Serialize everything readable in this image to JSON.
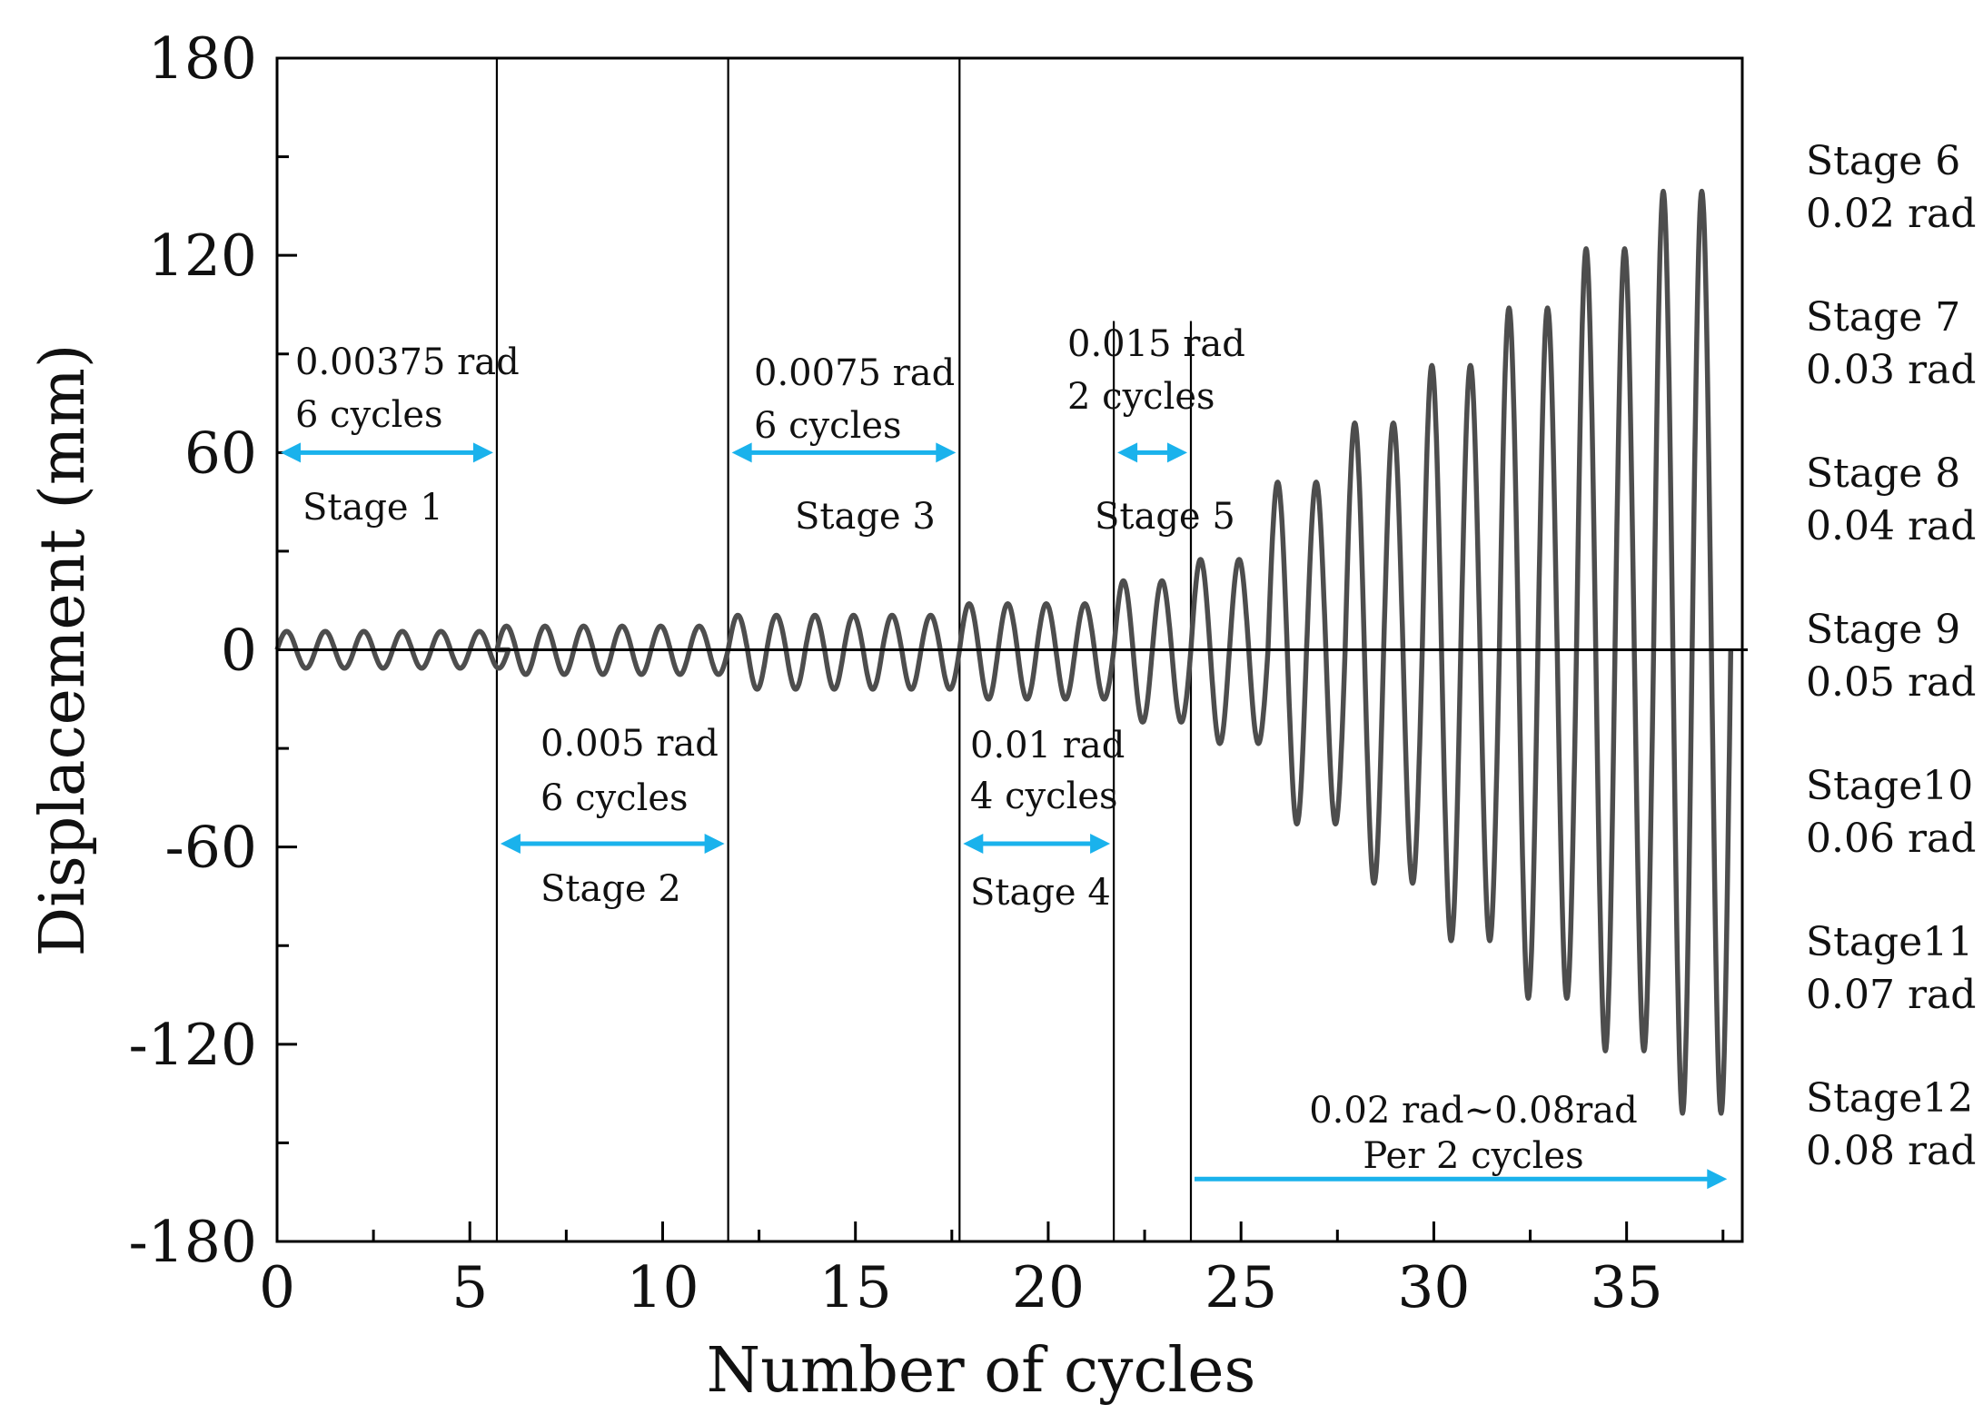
{
  "chart_data": {
    "type": "line",
    "title": "",
    "xlabel": "Number of cycles",
    "ylabel": "Displacement (mm)",
    "xlim": [
      0,
      38
    ],
    "ylim": [
      -180,
      180
    ],
    "x_ticks": [
      0,
      5,
      10,
      15,
      20,
      25,
      30,
      35
    ],
    "y_ticks": [
      -180,
      -120,
      -60,
      0,
      60,
      120,
      180
    ],
    "x_tick_labels": [
      "0",
      "5",
      "10",
      "15",
      "20",
      "25",
      "30",
      "35"
    ],
    "y_tick_labels": [
      "-180",
      "-120",
      "-60",
      "0",
      "60",
      "120",
      "180"
    ],
    "stage_boundaries": [
      5.7,
      11.7,
      17.7,
      21.7,
      23.7
    ],
    "series": [
      {
        "name": "Displacement",
        "color": "#4d4d4d",
        "stages": [
          {
            "start": 0,
            "cycles": 6,
            "up": 5.6,
            "down": 5.6
          },
          {
            "start": 5.7,
            "cycles": 6,
            "up": 7.2,
            "down": 7.5
          },
          {
            "start": 11.7,
            "cycles": 6,
            "up": 10.5,
            "down": 12.0
          },
          {
            "start": 17.7,
            "cycles": 4,
            "up": 14.0,
            "down": 15.0
          },
          {
            "start": 21.7,
            "cycles": 2,
            "up": 21.0,
            "down": 22.0
          },
          {
            "start": 23.7,
            "cycles": 2,
            "up": 27.5,
            "down": 28.5
          },
          {
            "start": 25.7,
            "cycles": 2,
            "up": 51.0,
            "down": 53.0
          },
          {
            "start": 27.7,
            "cycles": 2,
            "up": 69.0,
            "down": 71.0
          },
          {
            "start": 29.7,
            "cycles": 2,
            "up": 86.5,
            "down": 88.5
          },
          {
            "start": 31.7,
            "cycles": 2,
            "up": 104.0,
            "down": 106.0
          },
          {
            "start": 33.7,
            "cycles": 2,
            "up": 122.0,
            "down": 122.0
          },
          {
            "start": 35.7,
            "cycles": 2,
            "up": 139.5,
            "down": 141.0
          }
        ]
      }
    ],
    "annotations": {
      "stage1": {
        "line1": "0.00375 rad",
        "line2": "6 cycles",
        "name": "Stage 1",
        "arrow_from": 0,
        "arrow_to": 5.7,
        "arrow_y": 60
      },
      "stage2": {
        "line1": "0.005 rad",
        "line2": "6 cycles",
        "name": "Stage 2",
        "arrow_from": 5.7,
        "arrow_to": 11.7,
        "arrow_y": -59
      },
      "stage3": {
        "line1": "0.0075 rad",
        "line2": "6 cycles",
        "name": "Stage 3",
        "arrow_from": 11.7,
        "arrow_to": 17.7,
        "arrow_y": 60
      },
      "stage4": {
        "line1": "0.01 rad",
        "line2": "4 cycles",
        "name": "Stage 4",
        "arrow_from": 17.7,
        "arrow_to": 21.7,
        "arrow_y": -59
      },
      "stage5": {
        "line1": "0.015 rad",
        "line2": "2 cycles",
        "name": "Stage 5",
        "arrow_from": 21.7,
        "arrow_to": 23.7,
        "arrow_y": 60
      },
      "rest": {
        "line1": "0.02 rad~0.08rad",
        "line2": "Per 2 cycles",
        "arrow_from": 23.7,
        "arrow_to": 37.7,
        "arrow_y": -161
      }
    },
    "side_legend": [
      {
        "stage": "Stage 6",
        "rad": "0.02 rad"
      },
      {
        "stage": "Stage 7",
        "rad": "0.03 rad"
      },
      {
        "stage": "Stage 8",
        "rad": "0.04 rad"
      },
      {
        "stage": "Stage 9",
        "rad": "0.05 rad"
      },
      {
        "stage": "Stage10",
        "rad": "0.06 rad"
      },
      {
        "stage": "Stage11",
        "rad": "0.07 rad"
      },
      {
        "stage": "Stage12",
        "rad": "0.08 rad"
      }
    ]
  },
  "colors": {
    "curve": "#4d4d4d",
    "arrow": "#1ab2ec",
    "axis": "#000000"
  }
}
